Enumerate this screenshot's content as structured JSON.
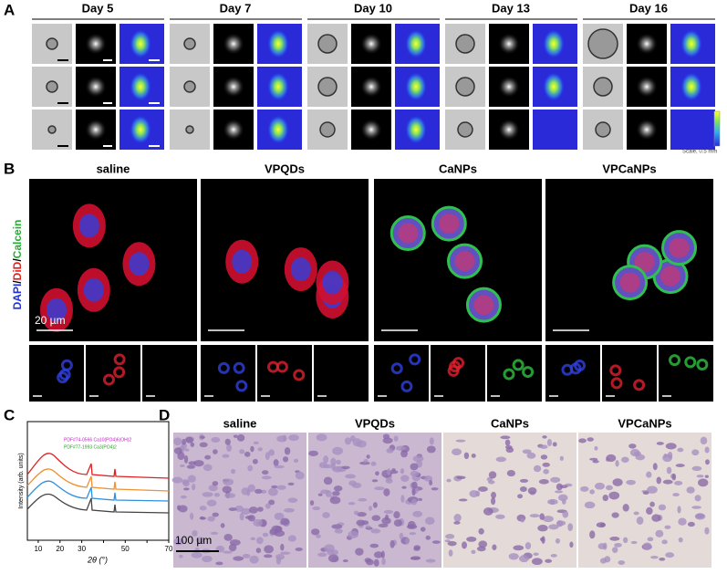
{
  "panel_labels": [
    "A",
    "B",
    "C",
    "D"
  ],
  "panel_a": {
    "days": [
      "Day 5",
      "Day 7",
      "Day 10",
      "Day 13",
      "Day 16"
    ],
    "scale_note": "Scale, 0.5 mm"
  },
  "panel_b": {
    "groups": [
      "saline",
      "VPQDs",
      "CaNPs",
      "VPCaNPs"
    ],
    "stain_label": {
      "dapi": "DAPI",
      "separator": "/",
      "did": "DiD",
      "calcein": "Calcein"
    },
    "scale_bar": "20 µm"
  },
  "panel_c": {
    "y_label": "Intensity (arb. units)",
    "x_label": "2θ (°)",
    "xlim": [
      5,
      70
    ],
    "xticks": [
      10,
      20,
      30,
      40,
      50,
      60,
      70
    ],
    "legend": [
      "PDF#74-0566 Ca10(PO4)6(OH)2",
      "PDF#77-1993 Ca3(PO4)2"
    ]
  },
  "panel_d": {
    "groups": [
      "saline",
      "VPQDs",
      "CaNPs",
      "VPCaNPs"
    ],
    "scale_bar": "100 µm"
  }
}
